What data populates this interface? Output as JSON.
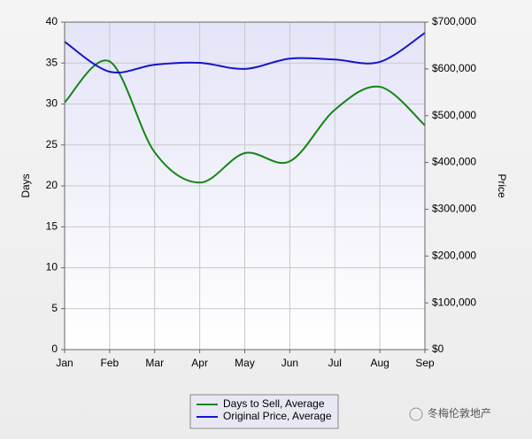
{
  "chart_data": {
    "type": "line",
    "categories": [
      "Jan",
      "Feb",
      "Mar",
      "Apr",
      "May",
      "Jun",
      "Jul",
      "Aug",
      "Sep"
    ],
    "ylabel": "Days",
    "y2label": "Price",
    "ylim": [
      0,
      40
    ],
    "yticks": [
      0,
      5,
      10,
      15,
      20,
      25,
      30,
      35,
      40
    ],
    "y2lim": [
      0,
      700000
    ],
    "y2ticks": [
      {
        "value": 0,
        "label": "$0"
      },
      {
        "value": 100000,
        "label": "$100,000"
      },
      {
        "value": 200000,
        "label": "$200,000"
      },
      {
        "value": 300000,
        "label": "$300,000"
      },
      {
        "value": 400000,
        "label": "$400,000"
      },
      {
        "value": 500000,
        "label": "$500,000"
      },
      {
        "value": 600000,
        "label": "$600,000"
      },
      {
        "value": 700000,
        "label": "$700,000"
      }
    ],
    "grid": true,
    "smooth": true,
    "series": [
      {
        "name": "Days to Sell, Average",
        "color": "#138613",
        "values": [
          30.2,
          35.2,
          24.1,
          20.4,
          24.0,
          23.0,
          29.3,
          32.1,
          27.4
        ]
      },
      {
        "name": "Original Price, Average",
        "color": "#1414c8",
        "axis": "y2",
        "values": [
          658000,
          594000,
          609000,
          613000,
          600000,
          622000,
          620000,
          615000,
          677000
        ]
      }
    ]
  },
  "watermark": "冬梅伦敦地产"
}
